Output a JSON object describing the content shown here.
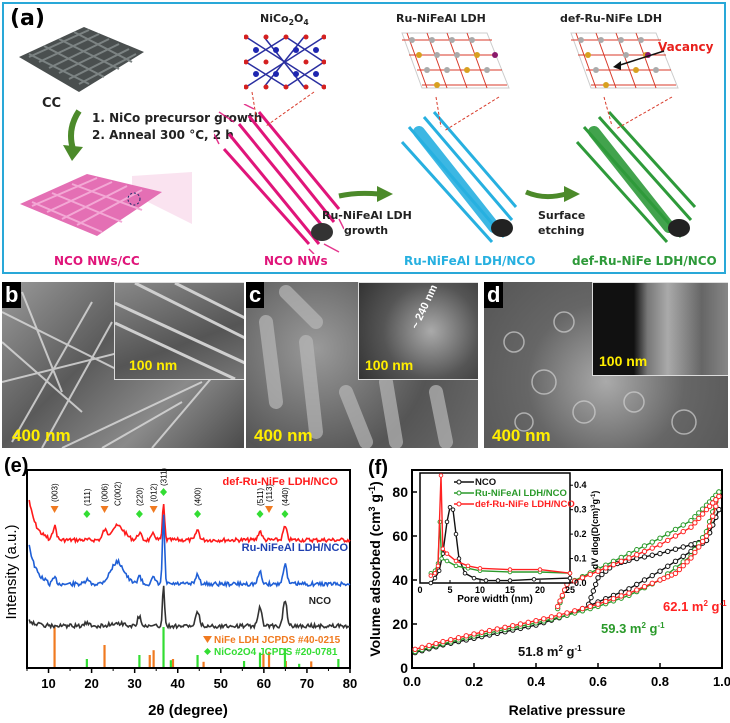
{
  "panel_a": {
    "label": "(a)",
    "cc_label": "CC",
    "step1": "1. NiCo precursor growth",
    "step2": "2. Anneal 300 °C, 2 h",
    "nico2o4_label": "NiCo2O4",
    "ru_nifeal_ldh_label": "Ru-NiFeAl LDH",
    "def_ru_nife_ldh_label": "def-Ru-NiFe LDH",
    "vacancy_label": "Vacancy",
    "arrow1_line1": "Ru-NiFeAl LDH",
    "arrow1_line2": "growth",
    "arrow2_line1": "Surface",
    "arrow2_line2": "etching",
    "cap1": "NCO NWs/CC",
    "cap2": "NCO NWs",
    "cap3": "Ru-NiFeAl LDH/NCO",
    "cap4": "def-Ru-NiFe LDH/NCO",
    "colors": {
      "pink": "#e0157a",
      "cyan": "#27b0e0",
      "green": "#2e9a3a",
      "red": "#e8201c",
      "border": "#29a8d8"
    }
  },
  "panel_b": {
    "label": "b",
    "scale_main": "400 nm",
    "scale_inset": "100 nm"
  },
  "panel_c": {
    "label": "c",
    "scale_main": "400 nm",
    "scale_inset": "100 nm",
    "annotation": "~ 240 nm"
  },
  "panel_d": {
    "label": "d",
    "scale_main": "400 nm",
    "scale_inset": "100 nm"
  },
  "chart_data": [
    {
      "id": "e",
      "type": "line",
      "panel_label": "(e)",
      "xlabel": "2θ (degree)",
      "ylabel": "Intensity (a.u.)",
      "xlim": [
        5,
        80
      ],
      "xticks": [
        10,
        20,
        30,
        40,
        50,
        60,
        70,
        80
      ],
      "series": [
        {
          "name": "def-Ru-NiFe LDH/NCO",
          "color": "#ff1a1a"
        },
        {
          "name": "Ru-NiFeAl LDH/NCO",
          "color": "#1f5fd6"
        },
        {
          "name": "NCO",
          "color": "#333333"
        }
      ],
      "peak_labels": [
        {
          "x": 11.4,
          "text": "(003)",
          "marker": "triangle"
        },
        {
          "x": 18.9,
          "text": "(111)",
          "marker": "diamond"
        },
        {
          "x": 23.0,
          "text": "(006)",
          "marker": "triangle"
        },
        {
          "x": 26.0,
          "text": "C(002)",
          "marker": "none"
        },
        {
          "x": 31.1,
          "text": "(220)",
          "marker": "diamond"
        },
        {
          "x": 34.4,
          "text": "(012)",
          "marker": "triangle"
        },
        {
          "x": 36.7,
          "text": "(311)",
          "marker": "diamond"
        },
        {
          "x": 44.6,
          "text": "(400)",
          "marker": "diamond"
        },
        {
          "x": 59.1,
          "text": "(511)",
          "marker": "diamond"
        },
        {
          "x": 61.2,
          "text": "(113)",
          "marker": "triangle"
        },
        {
          "x": 64.9,
          "text": "(440)",
          "marker": "diamond"
        }
      ],
      "references": [
        {
          "name": "NiFe LDH JCPDS #40-0215",
          "color": "#f07a20",
          "sticks": [
            [
              11.4,
              1.0
            ],
            [
              23.0,
              0.55
            ],
            [
              33.5,
              0.3
            ],
            [
              34.4,
              0.42
            ],
            [
              38.9,
              0.2
            ],
            [
              46.0,
              0.13
            ],
            [
              59.9,
              0.33
            ],
            [
              61.2,
              0.38
            ],
            [
              65.1,
              0.15
            ],
            [
              71.0,
              0.14
            ]
          ]
        },
        {
          "name": "NiCo2O4 JCPDS #20-0781",
          "color": "#33dd33",
          "sticks": [
            [
              18.9,
              0.2
            ],
            [
              31.1,
              0.3
            ],
            [
              36.7,
              1.0
            ],
            [
              38.4,
              0.17
            ],
            [
              44.6,
              0.3
            ],
            [
              55.4,
              0.15
            ],
            [
              59.1,
              0.36
            ],
            [
              64.9,
              0.47
            ],
            [
              68.2,
              0.08
            ],
            [
              77.3,
              0.2
            ]
          ]
        }
      ]
    },
    {
      "id": "f",
      "type": "line",
      "panel_label": "(f)",
      "xlabel": "Relative pressure",
      "ylabel": "Volume adsorbed (cm3 g-1)",
      "xlim": [
        0.0,
        1.0
      ],
      "ylim": [
        0,
        90
      ],
      "xticks": [
        "0.0",
        "0.2",
        "0.4",
        "0.6",
        "0.8",
        "1.0"
      ],
      "yticks": [
        0,
        20,
        40,
        60,
        80
      ],
      "series": [
        {
          "name": "NCO",
          "color": "#111111",
          "area": "51.8 m2 g-1",
          "adsorption": [
            [
              0.01,
              7
            ],
            [
              0.1,
              10.5
            ],
            [
              0.2,
              13.5
            ],
            [
              0.3,
              16.5
            ],
            [
              0.4,
              19.5
            ],
            [
              0.5,
              24
            ],
            [
              0.6,
              30
            ],
            [
              0.7,
              36
            ],
            [
              0.8,
              44
            ],
            [
              0.9,
              53
            ],
            [
              0.95,
              58
            ],
            [
              0.99,
              72
            ]
          ],
          "desorption": [
            [
              0.99,
              72
            ],
            [
              0.95,
              58
            ],
            [
              0.9,
              56
            ],
            [
              0.8,
              52
            ],
            [
              0.7,
              49
            ],
            [
              0.65,
              47
            ],
            [
              0.6,
              41
            ],
            [
              0.57,
              29
            ]
          ]
        },
        {
          "name": "Ru-NiFeAl LDH/NCO",
          "color": "#2a9a2a",
          "area": "59.3 m2 g-1",
          "adsorption": [
            [
              0.01,
              7.5
            ],
            [
              0.1,
              11
            ],
            [
              0.2,
              14.5
            ],
            [
              0.3,
              17.5
            ],
            [
              0.4,
              20.5
            ],
            [
              0.5,
              24
            ],
            [
              0.6,
              28
            ],
            [
              0.7,
              33
            ],
            [
              0.8,
              40
            ],
            [
              0.9,
              51
            ],
            [
              0.95,
              62
            ],
            [
              0.99,
              80
            ]
          ],
          "desorption": [
            [
              0.99,
              80
            ],
            [
              0.95,
              74
            ],
            [
              0.9,
              67
            ],
            [
              0.8,
              59
            ],
            [
              0.7,
              52
            ],
            [
              0.6,
              45
            ],
            [
              0.5,
              38
            ],
            [
              0.47,
              27
            ]
          ]
        },
        {
          "name": "def-Ru-NiFe LDH/NCO",
          "color": "#ff2222",
          "area": "62.1 m2 g-1",
          "adsorption": [
            [
              0.01,
              8.5
            ],
            [
              0.1,
              12
            ],
            [
              0.2,
              15.5
            ],
            [
              0.3,
              18.5
            ],
            [
              0.4,
              21.5
            ],
            [
              0.5,
              25
            ],
            [
              0.6,
              29
            ],
            [
              0.7,
              34
            ],
            [
              0.8,
              40
            ],
            [
              0.85,
              43
            ],
            [
              0.9,
              50
            ],
            [
              0.95,
              60
            ],
            [
              0.99,
              78
            ]
          ],
          "desorption": [
            [
              0.99,
              78
            ],
            [
              0.95,
              72
            ],
            [
              0.9,
              64
            ],
            [
              0.8,
              56
            ],
            [
              0.7,
              50
            ],
            [
              0.6,
              44
            ],
            [
              0.5,
              38
            ],
            [
              0.47,
              28
            ]
          ]
        }
      ],
      "inset": {
        "xlabel": "Pore width (nm)",
        "ylabel": "dV dlog(D(cm)3g-1)",
        "xlim": [
          0,
          25
        ],
        "ylim": [
          0,
          0.45
        ],
        "xticks": [
          0,
          5,
          10,
          15,
          20,
          25
        ],
        "yticks": [
          "0.0",
          "0.1",
          "0.2",
          "0.3",
          "0.4"
        ],
        "series": [
          {
            "name": "NCO",
            "color": "#111111",
            "points": [
              [
                1.8,
                0.0
              ],
              [
                2.5,
                0.02
              ],
              [
                3.2,
                0.05
              ],
              [
                3.8,
                0.12
              ],
              [
                4.5,
                0.25
              ],
              [
                5.0,
                0.31
              ],
              [
                5.5,
                0.3
              ],
              [
                6.0,
                0.2
              ],
              [
                6.5,
                0.1
              ],
              [
                7.5,
                0.04
              ],
              [
                9,
                0.02
              ],
              [
                11,
                0.01
              ],
              [
                13,
                0.01
              ],
              [
                15,
                0.01
              ],
              [
                19,
                0.015
              ],
              [
                25,
                0.02
              ]
            ]
          },
          {
            "name": "Ru-NiFeAl LDH/NCO",
            "color": "#2a9a2a",
            "points": [
              [
                1.8,
                0.04
              ],
              [
                2.5,
                0.05
              ],
              [
                3.0,
                0.08
              ],
              [
                3.3,
                0.25
              ],
              [
                3.6,
                0.1
              ],
              [
                4.5,
                0.09
              ],
              [
                6,
                0.07
              ],
              [
                8,
                0.06
              ],
              [
                10,
                0.05
              ],
              [
                15,
                0.045
              ],
              [
                20,
                0.045
              ],
              [
                25,
                0.04
              ]
            ]
          },
          {
            "name": "def-Ru-NiFe LDH/NCO",
            "color": "#ff2222",
            "points": [
              [
                1.8,
                0.03
              ],
              [
                2.5,
                0.04
              ],
              [
                3.0,
                0.07
              ],
              [
                3.5,
                0.44
              ],
              [
                3.8,
                0.14
              ],
              [
                4.5,
                0.12
              ],
              [
                6,
                0.09
              ],
              [
                8,
                0.07
              ],
              [
                10,
                0.06
              ],
              [
                15,
                0.055
              ],
              [
                20,
                0.055
              ],
              [
                25,
                0.04
              ]
            ]
          }
        ]
      }
    }
  ]
}
